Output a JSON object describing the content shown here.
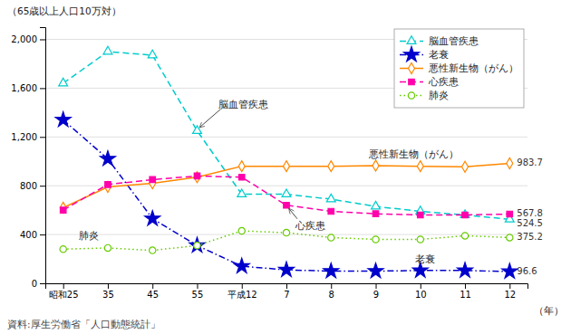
{
  "chart_data": {
    "type": "line",
    "ylabel": "（65歳以上人口10万対）",
    "xlabel": "（年）",
    "source": "資料:厚生労働省「人口動態統計」",
    "categories": [
      "昭和25",
      "35",
      "45",
      "55",
      "平成12",
      "7",
      "8",
      "9",
      "10",
      "11",
      "12"
    ],
    "series": [
      {
        "name": "脳血管疾患",
        "color": "#00cccc",
        "line_style": "dash",
        "marker": "triangle-open",
        "values": [
          1640,
          1900,
          1870,
          1250,
          730,
          730,
          690,
          630,
          590,
          560,
          524.5
        ],
        "value_labels": [
          null,
          null,
          null,
          null,
          null,
          null,
          null,
          null,
          null,
          null,
          "524.5"
        ]
      },
      {
        "name": "老衰",
        "color": "#0000cc",
        "line_style": "dashdot",
        "marker": "star",
        "values": [
          1340,
          1020,
          530,
          310,
          140,
          110,
          100,
          100,
          105,
          105,
          96.6
        ],
        "value_labels": [
          null,
          null,
          null,
          null,
          null,
          null,
          null,
          null,
          null,
          null,
          "96.6"
        ]
      },
      {
        "name": "悪性新生物（がん）",
        "color": "#ff8800",
        "line_style": "solid",
        "marker": "diamond-open",
        "values": [
          620,
          790,
          820,
          870,
          960,
          960,
          960,
          965,
          960,
          955,
          983.7
        ],
        "value_labels": [
          null,
          null,
          null,
          null,
          null,
          null,
          null,
          null,
          null,
          null,
          "983.7"
        ]
      },
      {
        "name": "心疾患",
        "color": "#ff00aa",
        "line_style": "dash",
        "marker": "square",
        "values": [
          600,
          810,
          850,
          880,
          870,
          640,
          590,
          570,
          560,
          560,
          567.8
        ],
        "value_labels": [
          null,
          null,
          null,
          null,
          null,
          null,
          null,
          null,
          null,
          null,
          "567.8"
        ]
      },
      {
        "name": "肺炎",
        "color": "#66cc00",
        "line_style": "dot",
        "marker": "circle-open",
        "values": [
          280,
          290,
          270,
          310,
          430,
          415,
          375,
          360,
          360,
          390,
          375.2
        ],
        "value_labels": [
          null,
          null,
          null,
          null,
          null,
          null,
          null,
          null,
          null,
          null,
          "375.2"
        ]
      }
    ],
    "ylim": [
      0,
      2100
    ],
    "yticks": [
      0,
      400,
      800,
      {
        "value": 1200,
        "label": "1,200"
      },
      {
        "value": 1600,
        "label": "1,600"
      },
      {
        "value": 2000,
        "label": "2,000"
      }
    ],
    "grid": true,
    "legend": "upper right",
    "annotations": [
      "脳血管疾患",
      "心疾患",
      "悪性新生物（がん）",
      "老衰",
      "肺炎"
    ]
  }
}
